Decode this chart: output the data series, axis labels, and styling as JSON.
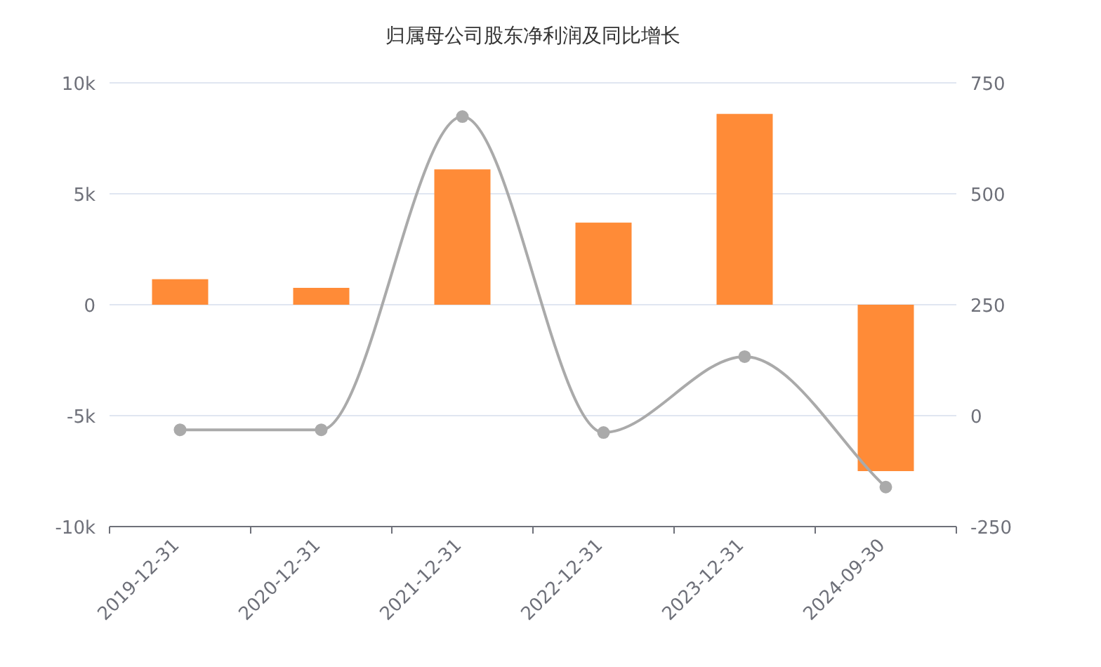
{
  "chart_data": {
    "type": "bar",
    "title": "归属母公司股东净利润及同比增长",
    "categories": [
      "2019-12-31",
      "2020-12-31",
      "2021-12-31",
      "2022-12-31",
      "2023-12-31",
      "2024-09-30"
    ],
    "series": [
      {
        "color": "#ff8b37",
        "values": [
          1150,
          760,
          6100,
          3700,
          8600,
          -7500
        ]
      },
      {
        "type": "line",
        "axis": "y2",
        "color": "#aaaaaa",
        "marker": "circle",
        "values": [
          -32,
          -32,
          674,
          -38,
          133,
          -161
        ]
      }
    ],
    "ylim": [
      -10000,
      10000
    ],
    "yticks": [
      {
        "value": -10000,
        "label": "-10k"
      },
      {
        "value": -5000,
        "label": "-5k"
      },
      0,
      {
        "value": 5000,
        "label": "5k"
      },
      {
        "value": 10000,
        "label": "10k"
      }
    ],
    "y2lim": [
      -250,
      750
    ],
    "y2ticks": [
      -250,
      0,
      250,
      500,
      750
    ],
    "grid": "y"
  }
}
